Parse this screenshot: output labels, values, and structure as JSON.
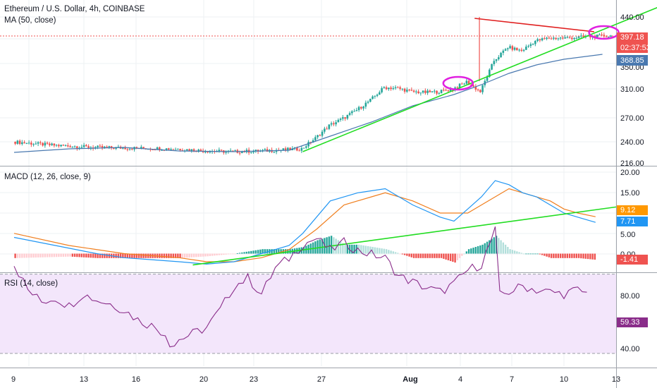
{
  "header": {
    "title": "Ethereum / U.S. Dollar, 4h, COINBASE",
    "ma_label": "MA (50, close)"
  },
  "colors": {
    "up": "#26a69a",
    "down": "#ef5350",
    "ma": "#4a79b0",
    "trend": "#22dd22",
    "resistance": "#e02020",
    "circle": "#e020e0",
    "macd_line": "#2196f3",
    "signal_line": "#f07f1f",
    "rsi_line": "#8a2d8a",
    "rsi_band": "#f3e6fb"
  },
  "chart_data": [
    {
      "type": "candlestick",
      "title": "Ethereum / U.S. Dollar, 4h, COINBASE",
      "y_ticks": [
        "440.00",
        "310.00",
        "270.00",
        "240.00",
        "216.00"
      ],
      "ylim": [
        216,
        450
      ],
      "x_ticks": [
        "9",
        "13",
        "16",
        "20",
        "23",
        "27",
        "Aug",
        "4",
        "7",
        "10",
        "13"
      ],
      "last_price": "397.18",
      "countdown": "02:37:53",
      "ma_value": "368.85",
      "ma_partial": "350.00",
      "price_path": [
        [
          0,
          247
        ],
        [
          3,
          242
        ],
        [
          6,
          239
        ],
        [
          9,
          238
        ],
        [
          12,
          237
        ],
        [
          14,
          234
        ],
        [
          16,
          233
        ],
        [
          18,
          234
        ],
        [
          20,
          236
        ],
        [
          21,
          237
        ],
        [
          22,
          252
        ],
        [
          23,
          270
        ],
        [
          24,
          280
        ],
        [
          25,
          292
        ],
        [
          26,
          306
        ],
        [
          27,
          324
        ],
        [
          28,
          323
        ],
        [
          29,
          318
        ],
        [
          30,
          317
        ],
        [
          31,
          318
        ],
        [
          32,
          322
        ],
        [
          33,
          332
        ],
        [
          34,
          318
        ],
        [
          35,
          362
        ],
        [
          36,
          381
        ],
        [
          37,
          376
        ],
        [
          38,
          390
        ],
        [
          39,
          394
        ],
        [
          40,
          394
        ],
        [
          41,
          395
        ],
        [
          42,
          396
        ],
        [
          43,
          397
        ],
        [
          43.4,
          397
        ]
      ],
      "ma_path": [
        [
          0,
          232
        ],
        [
          4,
          237
        ],
        [
          8,
          239
        ],
        [
          12,
          234
        ],
        [
          16,
          233
        ],
        [
          20,
          235
        ],
        [
          23,
          255
        ],
        [
          26,
          275
        ],
        [
          29,
          298
        ],
        [
          32,
          314
        ],
        [
          34,
          328
        ],
        [
          36,
          344
        ],
        [
          38,
          356
        ],
        [
          40,
          364
        ],
        [
          42,
          369
        ],
        [
          42.8,
          371
        ]
      ],
      "annotations": {
        "trendline": [
          [
            21,
            233
          ],
          [
            47,
            439
          ]
        ],
        "resistance": [
          [
            33.5,
            422
          ],
          [
            42.2,
            403
          ]
        ],
        "circles": [
          {
            "x": 32.3,
            "y": 330
          },
          {
            "x": 42.9,
            "y": 402
          }
        ]
      }
    },
    {
      "type": "macd",
      "title": "MACD (12, 26, close, 9)",
      "y_ticks": [
        "20.00",
        "15.00",
        "5.00",
        "0.00"
      ],
      "ylim": [
        -4,
        21
      ],
      "values": {
        "signal": "9.12",
        "macd": "7.71",
        "histogram": "-1.41"
      },
      "macd_path": [
        [
          0,
          4
        ],
        [
          3,
          2
        ],
        [
          6,
          0
        ],
        [
          8,
          -1
        ],
        [
          10,
          -1.5
        ],
        [
          12,
          -2
        ],
        [
          14,
          -2.6
        ],
        [
          16,
          -2
        ],
        [
          18,
          0
        ],
        [
          20,
          2
        ],
        [
          21,
          5
        ],
        [
          23,
          13
        ],
        [
          25,
          15
        ],
        [
          27,
          16
        ],
        [
          29,
          12
        ],
        [
          31,
          9
        ],
        [
          32,
          8
        ],
        [
          33,
          11
        ],
        [
          34,
          14
        ],
        [
          35,
          18
        ],
        [
          36,
          17
        ],
        [
          37,
          15
        ],
        [
          38,
          14
        ],
        [
          39,
          12
        ],
        [
          40,
          10
        ],
        [
          41,
          9
        ],
        [
          42.3,
          7.7
        ]
      ],
      "signal_path": [
        [
          0,
          5
        ],
        [
          4,
          2
        ],
        [
          8,
          0
        ],
        [
          12,
          -1
        ],
        [
          14,
          -2
        ],
        [
          16,
          -2
        ],
        [
          18,
          -1
        ],
        [
          20,
          1
        ],
        [
          22,
          6
        ],
        [
          24,
          12
        ],
        [
          26,
          14
        ],
        [
          27,
          15
        ],
        [
          29,
          13
        ],
        [
          31,
          10
        ],
        [
          33,
          10
        ],
        [
          35,
          14
        ],
        [
          36,
          16
        ],
        [
          37,
          15
        ],
        [
          39,
          13
        ],
        [
          40,
          11
        ],
        [
          41,
          10
        ],
        [
          42.3,
          9.1
        ]
      ],
      "trendline": [
        [
          13,
          -2.8
        ],
        [
          52,
          11.5
        ]
      ]
    },
    {
      "type": "rsi",
      "title": "RSI (14, close)",
      "y_ticks": [
        "80.00",
        "40.00"
      ],
      "ylim": [
        25,
        100
      ],
      "band": [
        30,
        70
      ],
      "value": "59.33",
      "rsi_path": [
        [
          0,
          75
        ],
        [
          1,
          62
        ],
        [
          2,
          56
        ],
        [
          3,
          58
        ],
        [
          4,
          54
        ],
        [
          5,
          60
        ],
        [
          6,
          57
        ],
        [
          7,
          55
        ],
        [
          8,
          52
        ],
        [
          9,
          47
        ],
        [
          10,
          44
        ],
        [
          11,
          40
        ],
        [
          11.5,
          33
        ],
        [
          12,
          37
        ],
        [
          13,
          40
        ],
        [
          14,
          43
        ],
        [
          15,
          52
        ],
        [
          16,
          64
        ],
        [
          17,
          68
        ],
        [
          18,
          60
        ],
        [
          19,
          73
        ],
        [
          20,
          78
        ],
        [
          21,
          85
        ],
        [
          22,
          88
        ],
        [
          23,
          82
        ],
        [
          24,
          86
        ],
        [
          25,
          82
        ],
        [
          26,
          80
        ],
        [
          27,
          78
        ],
        [
          28,
          69
        ],
        [
          29,
          66
        ],
        [
          30,
          63
        ],
        [
          31,
          61
        ],
        [
          32,
          65
        ],
        [
          33,
          72
        ],
        [
          34,
          75
        ],
        [
          35,
          92
        ],
        [
          35.2,
          59
        ],
        [
          36,
          61
        ],
        [
          37,
          64
        ],
        [
          38,
          62
        ],
        [
          39,
          61
        ],
        [
          40,
          60
        ],
        [
          41,
          62
        ],
        [
          42,
          59.3
        ]
      ]
    }
  ]
}
